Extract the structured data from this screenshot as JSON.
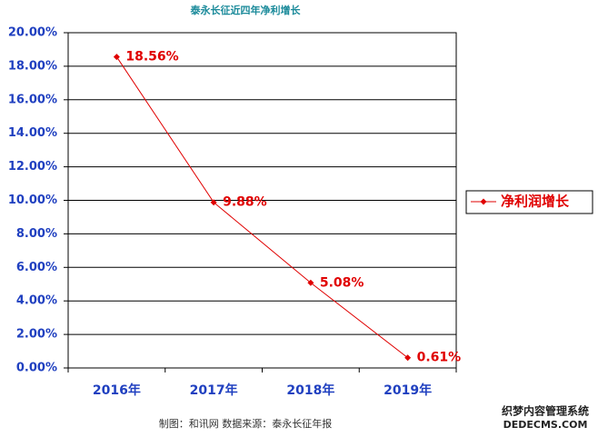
{
  "chart_data": {
    "type": "line",
    "title": "泰永长征近四年净利增长",
    "categories": [
      "2016年",
      "2017年",
      "2018年",
      "2019年"
    ],
    "series": [
      {
        "name": "净利润增长",
        "color": "#e00000",
        "values": [
          18.56,
          9.88,
          5.08,
          0.61
        ],
        "value_labels": [
          "18.56%",
          "9.88%",
          "5.08%",
          "0.61%"
        ]
      }
    ],
    "ylim": [
      0,
      20
    ],
    "yticks": [
      {
        "value": 0,
        "label": "0.00%"
      },
      {
        "value": 2,
        "label": "2.00%"
      },
      {
        "value": 4,
        "label": "4.00%"
      },
      {
        "value": 6,
        "label": "6.00%"
      },
      {
        "value": 8,
        "label": "8.00%"
      },
      {
        "value": 10,
        "label": "10.00%"
      },
      {
        "value": 12,
        "label": "12.00%"
      },
      {
        "value": 14,
        "label": "14.00%"
      },
      {
        "value": 16,
        "label": "16.00%"
      },
      {
        "value": 18,
        "label": "18.00%"
      },
      {
        "value": 20,
        "label": "20.00%"
      }
    ],
    "grid": true,
    "legend": "right",
    "source": "制图：和讯网   数据来源：泰永长征年报",
    "watermark": [
      "织梦内容管理系统",
      "DEDECMS.COM"
    ]
  }
}
